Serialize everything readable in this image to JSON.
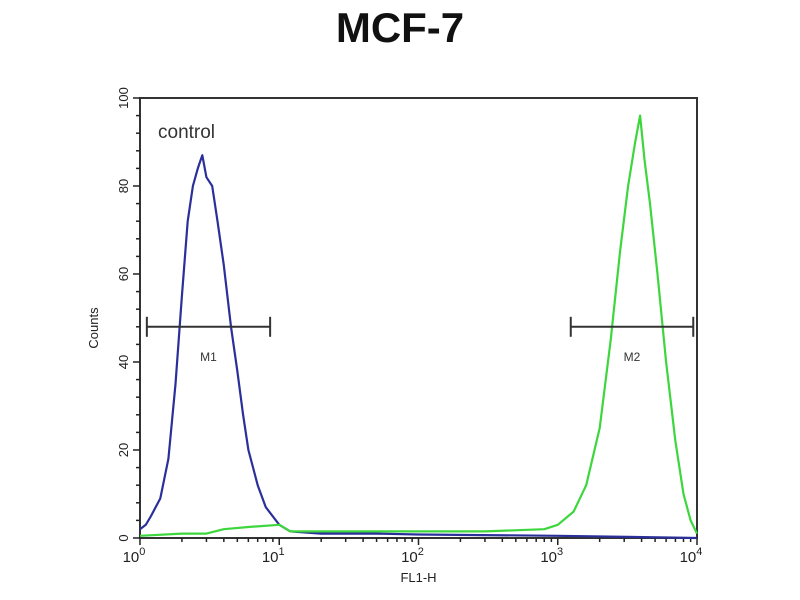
{
  "chart_data": {
    "type": "line",
    "title": "MCF-7",
    "xlabel": "FL1-H",
    "ylabel": "Counts",
    "xscale": "log",
    "xlim": [
      1,
      10000
    ],
    "ylim": [
      0,
      100
    ],
    "x_tick_labels": [
      {
        "base": "10",
        "exp": "0"
      },
      {
        "base": "10",
        "exp": "1"
      },
      {
        "base": "10",
        "exp": "2"
      },
      {
        "base": "10",
        "exp": "3"
      },
      {
        "base": "10",
        "exp": "4"
      }
    ],
    "y_ticks": [
      0,
      20,
      40,
      60,
      80,
      100
    ],
    "grid": false,
    "annotations": {
      "control_label": "control"
    },
    "series": [
      {
        "name": "control",
        "color": "#2b2f9a",
        "x": [
          1.0,
          1.1,
          1.2,
          1.4,
          1.6,
          1.8,
          2.0,
          2.2,
          2.4,
          2.6,
          2.8,
          3.0,
          3.3,
          3.6,
          4.0,
          4.5,
          5.0,
          5.5,
          6.0,
          7.0,
          8.0,
          10,
          12,
          20,
          50,
          100,
          1000,
          10000
        ],
        "y": [
          2,
          3,
          5,
          9,
          18,
          35,
          55,
          72,
          80,
          84,
          87,
          82,
          80,
          72,
          62,
          48,
          38,
          28,
          20,
          12,
          7,
          3,
          1.5,
          1,
          1,
          0.8,
          0.5,
          0
        ]
      },
      {
        "color": "#3dd63d",
        "x": [
          1,
          2,
          3,
          4,
          6,
          10,
          12,
          30,
          100,
          300,
          800,
          1000,
          1300,
          1600,
          2000,
          2400,
          2800,
          3200,
          3600,
          3900,
          4200,
          4600,
          5200,
          6000,
          7000,
          8000,
          9000,
          10000
        ],
        "y": [
          0.5,
          1,
          1,
          2,
          2.5,
          3,
          1.5,
          1.5,
          1.5,
          1.5,
          2,
          3,
          6,
          12,
          25,
          45,
          65,
          80,
          90,
          96,
          86,
          76,
          60,
          40,
          22,
          10,
          4,
          1
        ]
      }
    ],
    "markers": [
      {
        "label": "M1",
        "x_range": [
          1.12,
          8.6
        ],
        "y": 48,
        "color": "#333333"
      },
      {
        "label": "M2",
        "x_range": [
          1240,
          9400
        ],
        "y": 48,
        "color": "#333333"
      }
    ]
  }
}
